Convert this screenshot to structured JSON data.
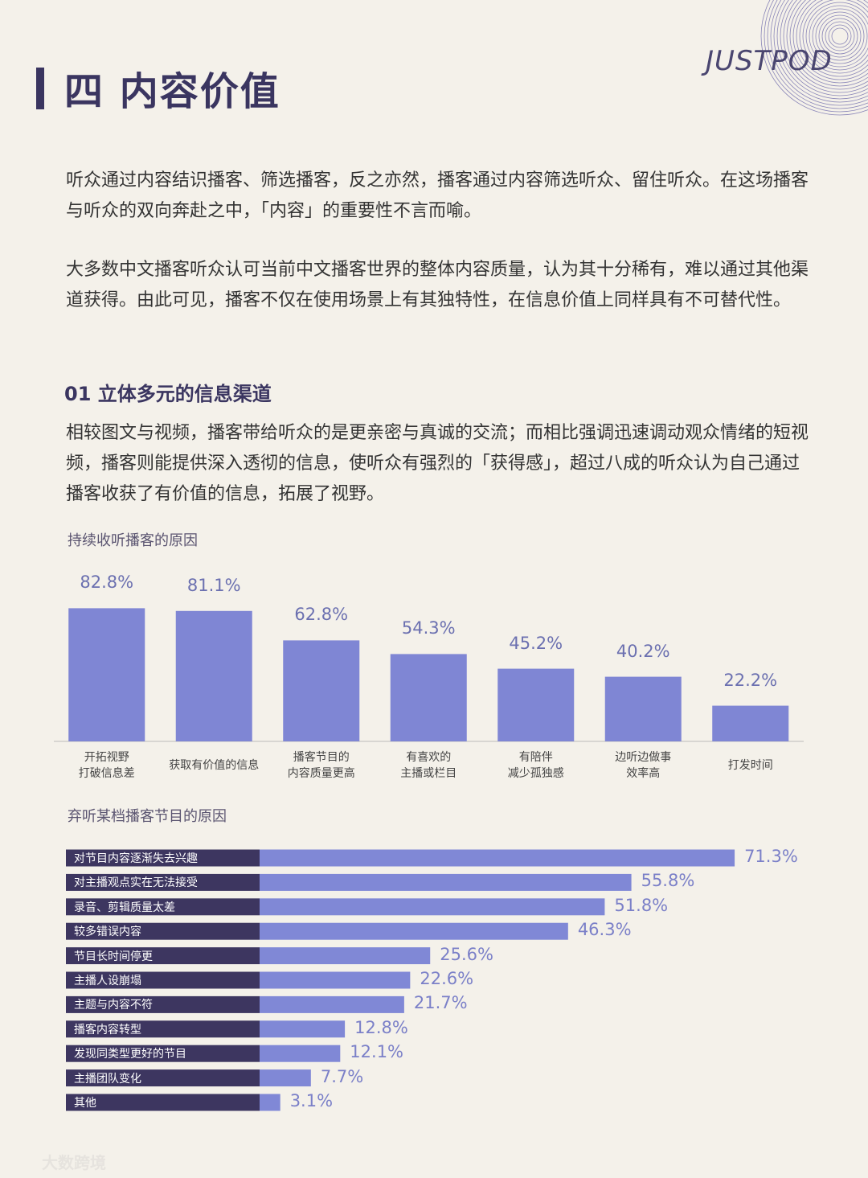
{
  "header": {
    "title": "四 内容价值",
    "logo": "JUSTPOD"
  },
  "paragraphs": [
    "听众通过内容结识播客、筛选播客，反之亦然，播客通过内容筛选听众、留住听众。在这场播客与听众的双向奔赴之中，「内容」的重要性不言而喻。",
    "大多数中文播客听众认可当前中文播客世界的整体内容质量，认为其十分稀有，难以通过其他渠道获得。由此可见，播客不仅在使用场景上有其独特性，在信息价值上同样具有不可替代性。"
  ],
  "section": {
    "heading": "01 立体多元的信息渠道",
    "paragraph": "相较图文与视频，播客带给听众的是更亲密与真诚的交流；而相比强调迅速调动观众情绪的短视频，播客则能提供深入透彻的信息，使听众有强烈的「获得感」，超过八成的听众认为自己通过播客收获了有价值的信息，拓展了视野。"
  },
  "chart_data": [
    {
      "type": "bar",
      "orientation": "vertical",
      "title": "持续收听播客的原因",
      "categories": [
        "开拓视野\n打破信息差",
        "获取有价值的信息",
        "播客节目的\n内容质量更高",
        "有喜欢的\n主播或栏目",
        "有陪伴\n减少孤独感",
        "边听边做事\n效率高",
        "打发时间"
      ],
      "values": [
        82.8,
        81.1,
        62.8,
        54.3,
        45.2,
        40.2,
        22.2
      ],
      "value_labels": [
        "82.8%",
        "81.1%",
        "62.8%",
        "54.3%",
        "45.2%",
        "40.2%",
        "22.2%"
      ],
      "color": "#7f86d4",
      "ylim": [
        0,
        100
      ]
    },
    {
      "type": "bar",
      "orientation": "horizontal",
      "title": "弃听某档播客节目的原因",
      "categories": [
        "对节目内容逐渐失去兴趣",
        "对主播观点实在无法接受",
        "录音、剪辑质量太差",
        "较多错误内容",
        "节目长时间停更",
        "主播人设崩塌",
        "主题与内容不符",
        "播客内容转型",
        "发现同类型更好的节目",
        "主播团队变化",
        "其他"
      ],
      "values": [
        71.3,
        55.8,
        51.8,
        46.3,
        25.6,
        22.6,
        21.7,
        12.8,
        12.1,
        7.7,
        3.1
      ],
      "value_labels": [
        "71.3%",
        "55.8%",
        "51.8%",
        "46.3%",
        "25.6%",
        "22.6%",
        "21.7%",
        "12.8%",
        "12.1%",
        "7.7%",
        "3.1%"
      ],
      "color": "#8088d6",
      "label_color": "#3d3660",
      "xlim": [
        0,
        100
      ]
    }
  ],
  "watermark": "大数跨境"
}
